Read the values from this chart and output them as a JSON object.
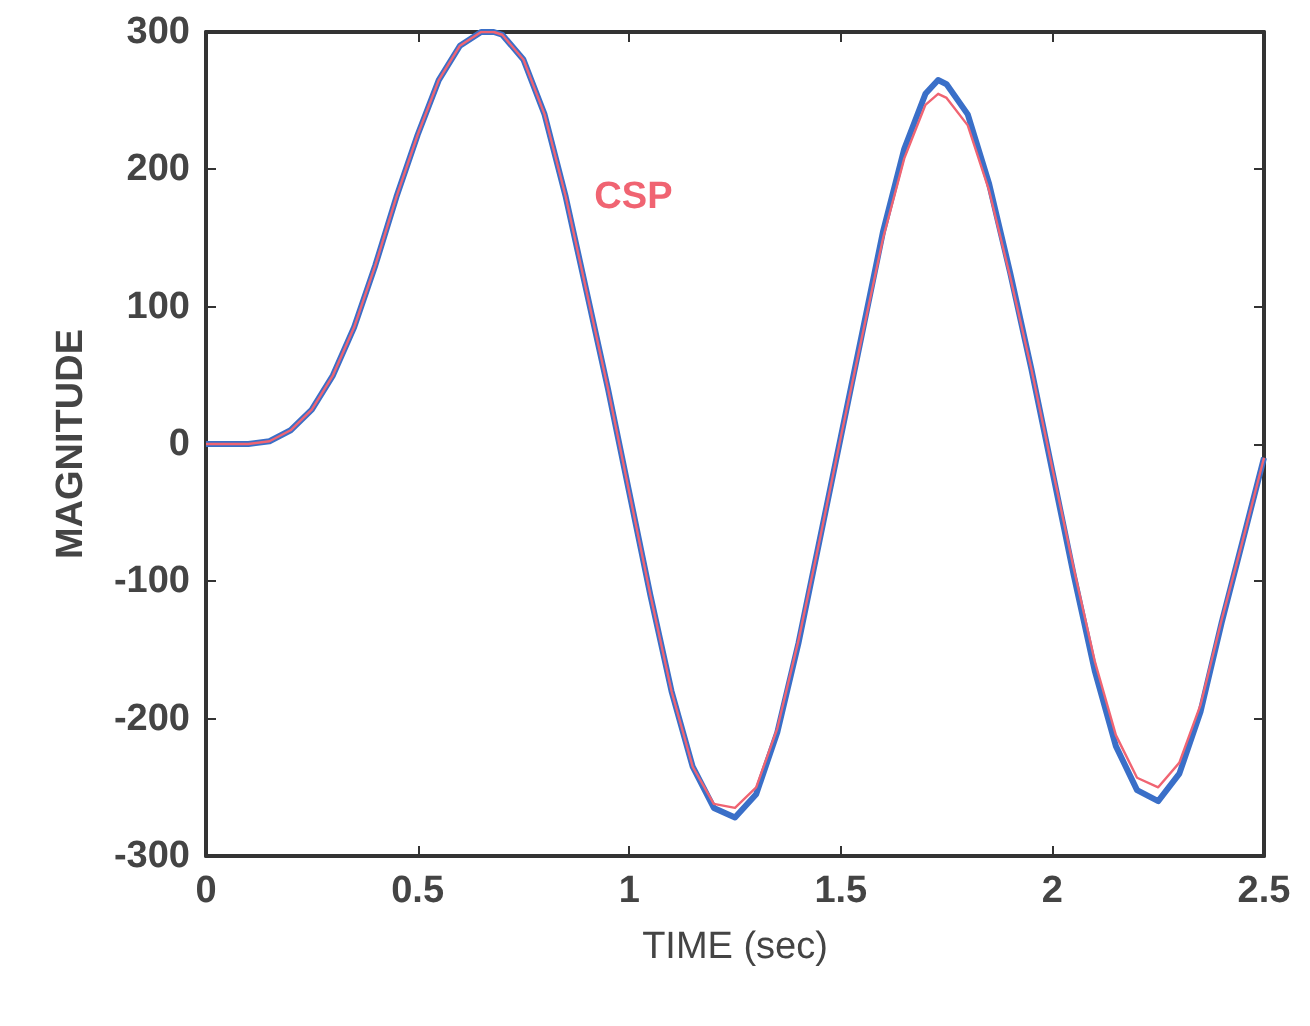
{
  "chart_data": {
    "type": "line",
    "xlabel": "TIME (sec)",
    "ylabel": "MAGNITUDE",
    "xlim": [
      0,
      2.5
    ],
    "xticks": [
      0,
      0.5,
      1,
      1.5,
      2,
      2.5
    ],
    "ylim": [
      -300,
      300
    ],
    "yticks": [
      -300,
      -200,
      -100,
      0,
      100,
      200,
      300
    ],
    "grid": false,
    "legend": false,
    "marker": "none",
    "line_style": "solid",
    "x": [
      0,
      0.05,
      0.1,
      0.15,
      0.2,
      0.25,
      0.3,
      0.35,
      0.4,
      0.45,
      0.5,
      0.55,
      0.6,
      0.65,
      0.68,
      0.7,
      0.75,
      0.8,
      0.85,
      0.9,
      0.95,
      1.0,
      1.05,
      1.1,
      1.15,
      1.2,
      1.25,
      1.3,
      1.35,
      1.4,
      1.45,
      1.5,
      1.55,
      1.6,
      1.65,
      1.7,
      1.73,
      1.75,
      1.8,
      1.85,
      1.9,
      1.95,
      2.0,
      2.05,
      2.1,
      2.15,
      2.2,
      2.25,
      2.3,
      2.35,
      2.4,
      2.45,
      2.5
    ],
    "series": [
      {
        "color": "#3a6fc8",
        "values": [
          0,
          0,
          0,
          2,
          10,
          25,
          50,
          85,
          130,
          180,
          225,
          265,
          290,
          300,
          300,
          298,
          280,
          240,
          180,
          110,
          40,
          -35,
          -110,
          -180,
          -235,
          -265,
          -272,
          -255,
          -210,
          -145,
          -70,
          5,
          80,
          155,
          215,
          255,
          265,
          262,
          240,
          190,
          125,
          55,
          -20,
          -95,
          -165,
          -220,
          -252,
          -260,
          -240,
          -195,
          -130,
          -70,
          -10
        ]
      },
      {
        "name": "CSP",
        "color": "#f06472",
        "values": [
          0,
          0,
          0,
          2,
          10,
          25,
          50,
          85,
          130,
          180,
          225,
          265,
          290,
          300,
          300,
          298,
          280,
          240,
          180,
          110,
          40,
          -35,
          -110,
          -180,
          -235,
          -262,
          -265,
          -250,
          -207,
          -143,
          -70,
          5,
          78,
          150,
          208,
          247,
          255,
          252,
          232,
          185,
          122,
          55,
          -18,
          -90,
          -158,
          -212,
          -243,
          -250,
          -232,
          -190,
          -128,
          -70,
          -10
        ]
      }
    ]
  }
}
